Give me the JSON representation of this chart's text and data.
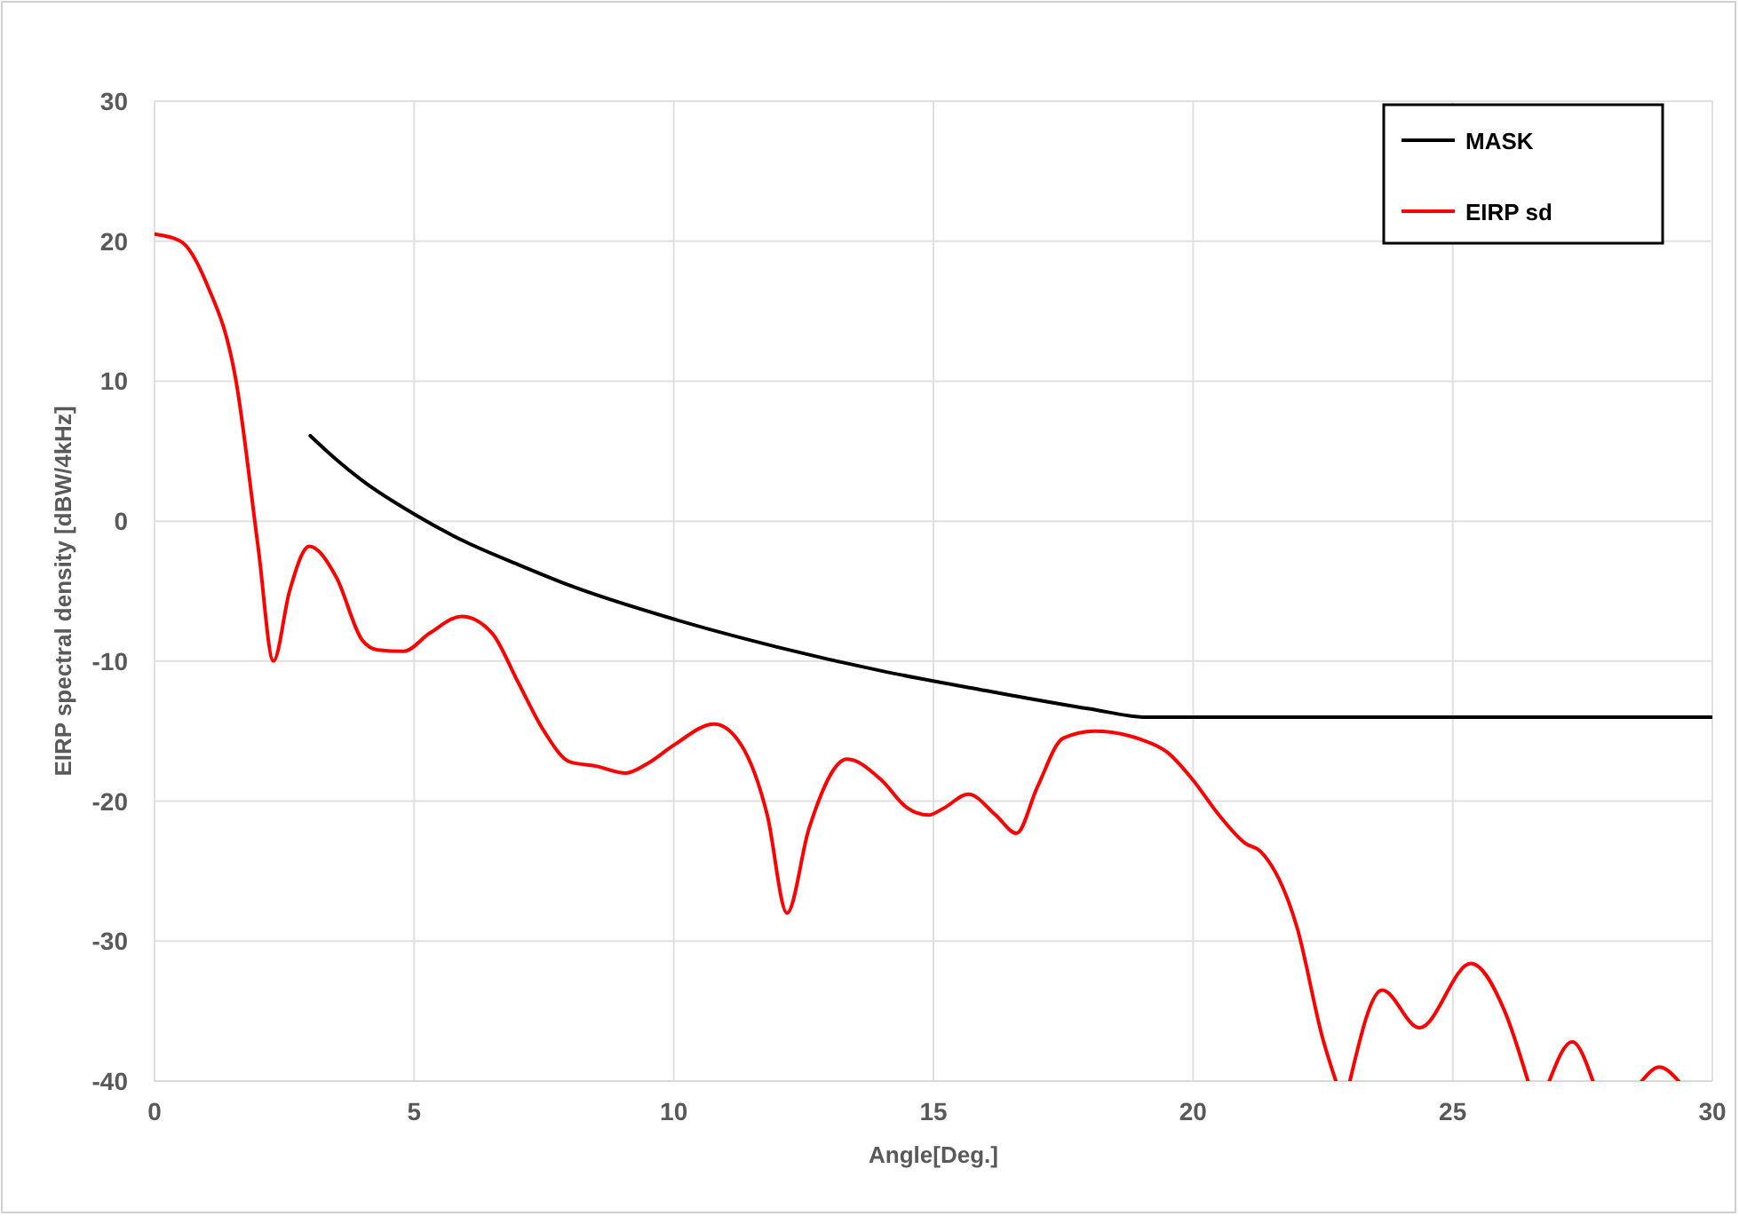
{
  "chart_data": {
    "type": "line",
    "xlabel": "Angle[Deg.]",
    "ylabel": "EIRP spectral density [dBW/4kHz]",
    "xlim": [
      0,
      30
    ],
    "xticks": [
      0,
      5,
      10,
      15,
      20,
      25,
      30
    ],
    "ylim": [
      -40,
      30
    ],
    "yticks": [
      -40,
      -30,
      -20,
      -10,
      0,
      10,
      20,
      30
    ],
    "grid": true,
    "legend": "top right",
    "marker": "none",
    "line_style": "solid",
    "series": [
      {
        "name": "MASK",
        "color": "#000000",
        "x": [
          3,
          3.5,
          4,
          5,
          6,
          7,
          8,
          10,
          12,
          14,
          16,
          18,
          19.1,
          30
        ],
        "values": [
          6.1,
          4.4,
          2.9,
          0.5,
          -1.5,
          -3.1,
          -4.6,
          -7,
          -9,
          -10.7,
          -12.1,
          -13.4,
          -14,
          -14
        ]
      },
      {
        "name": "EIRP sd",
        "color": "#ff0000",
        "x": [
          0,
          0.5,
          1,
          1.57,
          2,
          2.29,
          2.6,
          2.98,
          3.5,
          4,
          4.3,
          4.8,
          5.3,
          5.92,
          6.5,
          7,
          7.5,
          8,
          8.5,
          9.07,
          9.5,
          10,
          10.78,
          11.3,
          11.8,
          12.18,
          12.6,
          13.34,
          14,
          14.5,
          14.9,
          15.2,
          15.67,
          16.2,
          16.6,
          17,
          17.5,
          18.1,
          19,
          19.5,
          20,
          20.5,
          21,
          21.3,
          22,
          22.5,
          22.75,
          22.76,
          23.02,
          23.64,
          24.36,
          25.35,
          26,
          26.45,
          26.46,
          26.86,
          27.3,
          27.7,
          27.71,
          28.64,
          28.98,
          29.35
        ],
        "values": [
          20.5,
          20,
          17,
          10,
          -2,
          -10,
          -5,
          -1.8,
          -4,
          -8.5,
          -9.2,
          -9.3,
          -8,
          -6.8,
          -8,
          -11.5,
          -15,
          -17.2,
          -17.5,
          -18,
          -17.3,
          -16,
          -14.5,
          -16,
          -21,
          -28,
          -22,
          -17,
          -18.5,
          -20.5,
          -21,
          -20.5,
          -19.5,
          -21,
          -22.3,
          -19,
          -15.5,
          -15,
          -15.6,
          -16.5,
          -18.5,
          -21,
          -23,
          -23.6,
          -29,
          -37,
          -40,
          null,
          -40,
          -33.5,
          -36.2,
          -31.6,
          -35,
          -40,
          null,
          -40,
          -37.2,
          -40,
          null,
          -40,
          -39,
          -40
        ]
      }
    ]
  }
}
